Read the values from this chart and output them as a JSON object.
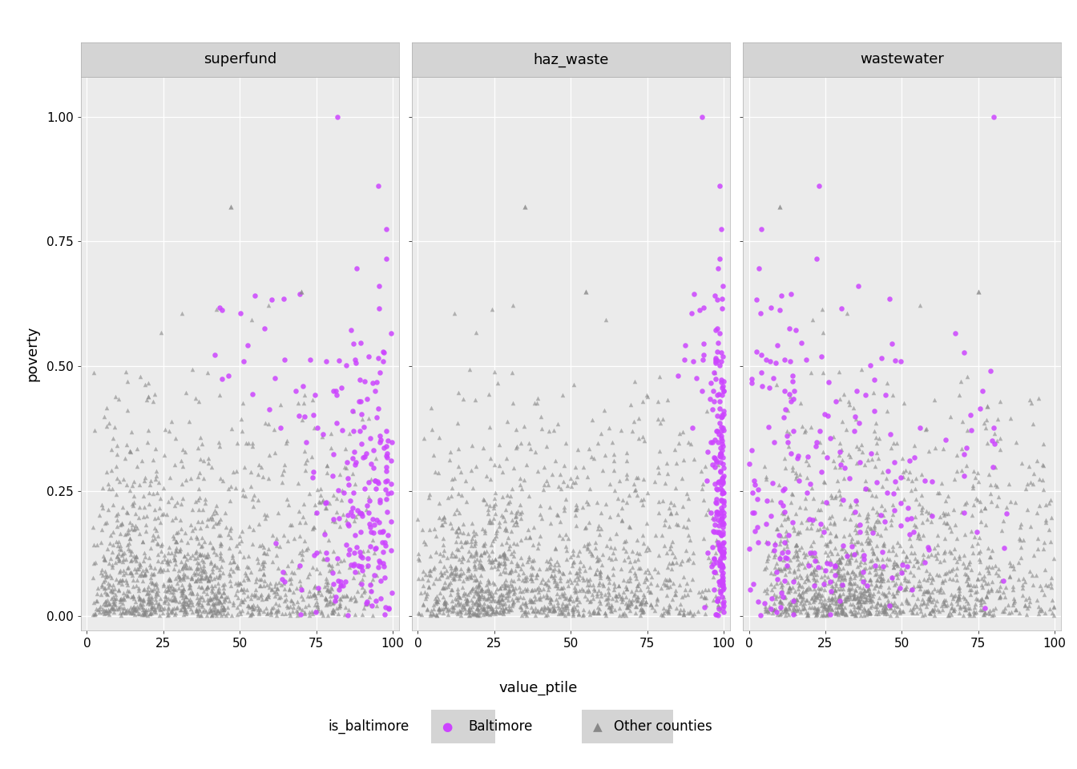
{
  "panels": [
    "superfund",
    "haz_waste",
    "wastewater"
  ],
  "panel_bg_color": "#e8e8e8",
  "panel_header_bg": "#d4d4d4",
  "plot_bg_color": "#ebebeb",
  "figure_bg_color": "#ffffff",
  "grid_color": "#ffffff",
  "baltimore_color": "#cc44ff",
  "other_color": "#888888",
  "baltimore_marker": "o",
  "other_marker": "^",
  "xlabel": "value_ptile",
  "ylabel": "poverty",
  "legend_title": "is_baltimore",
  "legend_labels": [
    "Baltimore",
    "Other counties"
  ],
  "xlim": [
    -2,
    102
  ],
  "ylim": [
    -0.03,
    1.08
  ],
  "xticks": [
    0,
    25,
    50,
    75,
    100
  ],
  "yticks": [
    0.0,
    0.25,
    0.5,
    0.75,
    1.0
  ],
  "n_baltimore": 230,
  "n_other": 1400,
  "random_seed": 7,
  "marker_size_balt": 22,
  "marker_size_other": 16,
  "alpha_balt": 0.85,
  "alpha_other": 0.6
}
